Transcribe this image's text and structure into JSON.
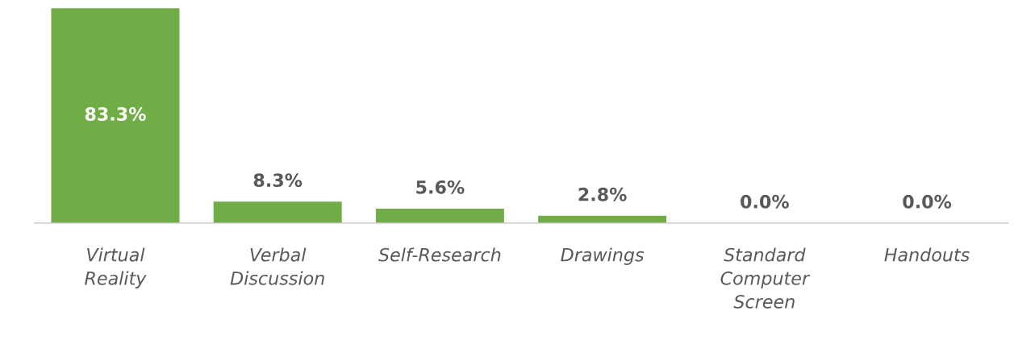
{
  "chart_data": {
    "type": "bar",
    "categories": [
      "Virtual\nReality",
      "Verbal\nDiscussion",
      "Self-Research",
      "Drawings",
      "Standard\nComputer\nScreen",
      "Handouts"
    ],
    "values": [
      83.3,
      8.3,
      5.6,
      2.8,
      0.0,
      0.0
    ],
    "value_labels": [
      "83.3%",
      "8.3%",
      "5.6%",
      "2.8%",
      "0.0%",
      "0.0%"
    ],
    "color": "#70ad47",
    "grid": false,
    "legend": false
  }
}
